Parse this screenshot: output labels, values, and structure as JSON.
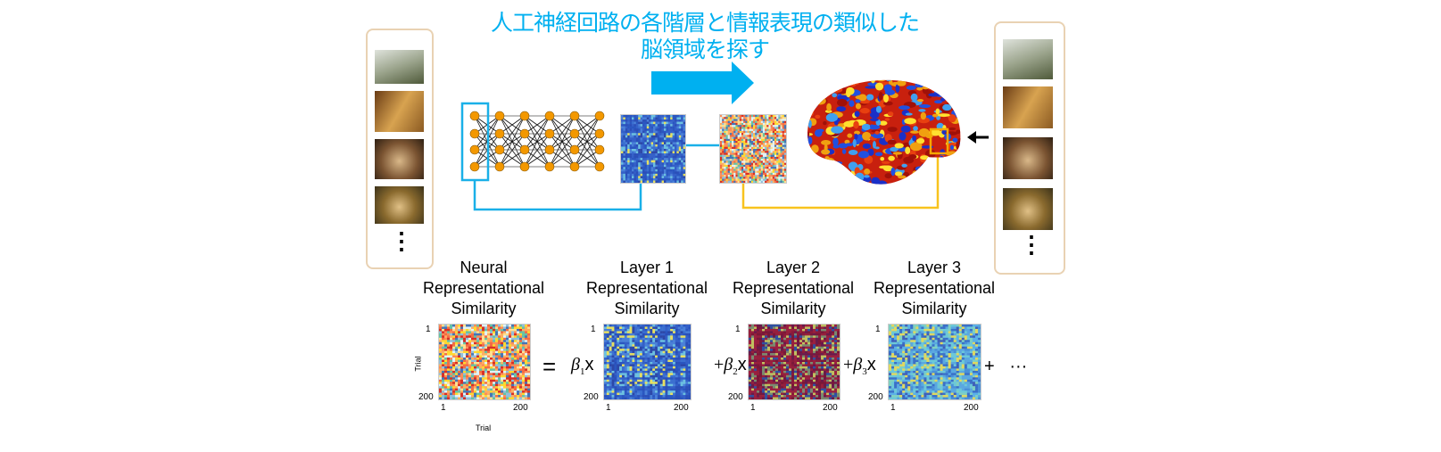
{
  "title": {
    "line1": "人工神経回路の各階層と情報表現の類似した",
    "line2": "脳領域を探す"
  },
  "colors": {
    "title": "#00b0f0",
    "arrow": "#00b0f0",
    "nn_box": "#1ab0e8",
    "brain_box": "#f5a800",
    "brain_connector": "#f8c31e",
    "neuron": "#f39800",
    "panel_border": "#e9d2b3"
  },
  "left_stimuli": {
    "ellipsis": "⋮"
  },
  "right_stimuli": {
    "ellipsis": "⋮"
  },
  "matrices": [
    {
      "label": [
        "Neural",
        "Representational",
        "Similarity"
      ],
      "tick_top": "1",
      "tick_bottom": "200",
      "tick_x_start": "1",
      "tick_x_end": "200",
      "ylabel": "Trial",
      "xlabel": "Trial",
      "palette": "noise"
    },
    {
      "label": [
        "Layer 1",
        "Representational",
        "Similarity"
      ],
      "tick_top": "1",
      "tick_bottom": "200",
      "tick_x_start": "1",
      "tick_x_end": "200",
      "palette": "blue"
    },
    {
      "label": [
        "Layer 2",
        "Representational",
        "Similarity"
      ],
      "tick_top": "1",
      "tick_bottom": "200",
      "tick_x_start": "1",
      "tick_x_end": "200",
      "palette": "red"
    },
    {
      "label": [
        "Layer 3",
        "Representational",
        "Similarity"
      ],
      "tick_top": "1",
      "tick_bottom": "200",
      "tick_x_start": "1",
      "tick_x_end": "200",
      "palette": "cyan"
    }
  ],
  "equation": {
    "equals": "=",
    "beta1": "β",
    "sub1": "1",
    "x1": "x",
    "plus2": "+",
    "beta2": "β",
    "sub2": "2",
    "x2": "x",
    "plus3": "+",
    "beta3": "β",
    "sub3": "3",
    "x3": "x",
    "plus_more": "+",
    "ellipsis": "···"
  }
}
